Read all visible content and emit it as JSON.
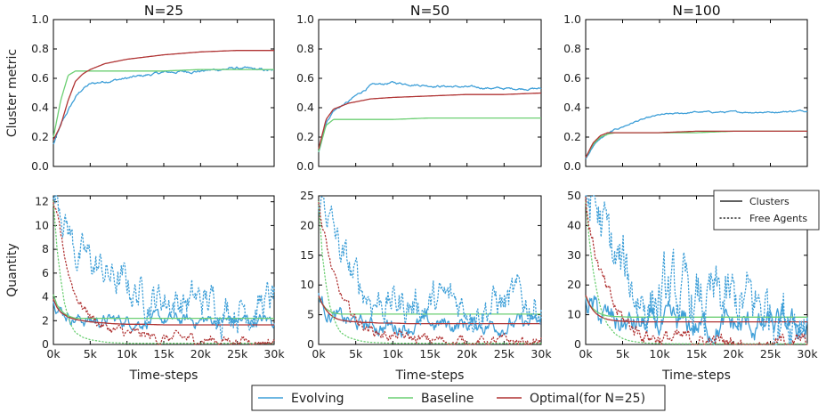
{
  "colors": {
    "evolving": "#3e9fd8",
    "baseline": "#6ccf73",
    "optimal": "#b03434",
    "black": "#000000"
  },
  "legend": {
    "bottom": [
      {
        "key": "evolving",
        "label": "Evolving"
      },
      {
        "key": "baseline",
        "label": "Baseline"
      },
      {
        "key": "optimal",
        "label": "Optimal(for N=25)"
      }
    ],
    "inset": {
      "clusters": "Clusters",
      "free_agents": "Free Agents",
      "placement": "upper-right of N=100 quantity panel"
    }
  },
  "chart_data": [
    {
      "type": "line",
      "title": "N=25",
      "xlabel": "",
      "ylabel": "Cluster metric",
      "xlim": [
        0,
        30000
      ],
      "ylim": [
        0,
        1.0
      ],
      "xticks": [
        0,
        5000,
        10000,
        15000,
        20000,
        25000,
        30000
      ],
      "xtick_labels": [],
      "yticks": [
        0,
        0.2,
        0.4,
        0.6,
        0.8,
        1.0
      ],
      "ytick_labels": [
        "0.0",
        "0.2",
        "0.4",
        "0.6",
        "0.8",
        "1.0"
      ],
      "x": [
        0,
        1000,
        2000,
        3000,
        4000,
        5000,
        7000,
        10000,
        15000,
        20000,
        25000,
        30000
      ],
      "series": [
        {
          "key": "evolving",
          "style": "solid",
          "noise": 0.025,
          "values": [
            0.15,
            0.28,
            0.38,
            0.47,
            0.53,
            0.56,
            0.58,
            0.6,
            0.64,
            0.65,
            0.67,
            0.65
          ]
        },
        {
          "key": "baseline",
          "style": "solid",
          "noise": 0,
          "values": [
            0.2,
            0.45,
            0.62,
            0.65,
            0.65,
            0.65,
            0.65,
            0.65,
            0.65,
            0.66,
            0.66,
            0.66
          ]
        },
        {
          "key": "optimal",
          "style": "solid",
          "noise": 0,
          "values": [
            0.18,
            0.28,
            0.45,
            0.58,
            0.63,
            0.66,
            0.7,
            0.73,
            0.76,
            0.78,
            0.79,
            0.79
          ]
        }
      ]
    },
    {
      "type": "line",
      "title": "N=50",
      "xlabel": "",
      "ylabel": "",
      "xlim": [
        0,
        30000
      ],
      "ylim": [
        0,
        1.0
      ],
      "xticks": [
        0,
        5000,
        10000,
        15000,
        20000,
        25000,
        30000
      ],
      "xtick_labels": [],
      "yticks": [
        0,
        0.2,
        0.4,
        0.6,
        0.8,
        1.0
      ],
      "ytick_labels": [
        "0.0",
        "0.2",
        "0.4",
        "0.6",
        "0.8",
        "1.0"
      ],
      "x": [
        0,
        1000,
        2000,
        3000,
        4000,
        5000,
        7000,
        10000,
        15000,
        20000,
        25000,
        30000
      ],
      "series": [
        {
          "key": "evolving",
          "style": "solid",
          "noise": 0.02,
          "values": [
            0.1,
            0.3,
            0.38,
            0.41,
            0.44,
            0.48,
            0.55,
            0.57,
            0.55,
            0.54,
            0.53,
            0.53
          ]
        },
        {
          "key": "baseline",
          "style": "solid",
          "noise": 0,
          "values": [
            0.1,
            0.28,
            0.32,
            0.32,
            0.32,
            0.32,
            0.32,
            0.32,
            0.33,
            0.33,
            0.33,
            0.33
          ]
        },
        {
          "key": "optimal",
          "style": "solid",
          "noise": 0,
          "values": [
            0.12,
            0.32,
            0.39,
            0.41,
            0.43,
            0.44,
            0.46,
            0.47,
            0.48,
            0.49,
            0.49,
            0.5
          ]
        }
      ]
    },
    {
      "type": "line",
      "title": "N=100",
      "xlabel": "",
      "ylabel": "",
      "xlim": [
        0,
        30000
      ],
      "ylim": [
        0,
        1.0
      ],
      "xticks": [
        0,
        5000,
        10000,
        15000,
        20000,
        25000,
        30000
      ],
      "xtick_labels": [],
      "yticks": [
        0,
        0.2,
        0.4,
        0.6,
        0.8,
        1.0
      ],
      "ytick_labels": [
        "0.0",
        "0.2",
        "0.4",
        "0.6",
        "0.8",
        "1.0"
      ],
      "x": [
        0,
        1000,
        2000,
        3000,
        4000,
        5000,
        7000,
        10000,
        15000,
        20000,
        25000,
        30000
      ],
      "series": [
        {
          "key": "evolving",
          "style": "solid",
          "noise": 0.015,
          "values": [
            0.05,
            0.14,
            0.19,
            0.22,
            0.25,
            0.27,
            0.31,
            0.35,
            0.37,
            0.37,
            0.37,
            0.38
          ]
        },
        {
          "key": "baseline",
          "style": "solid",
          "noise": 0,
          "values": [
            0.06,
            0.15,
            0.2,
            0.22,
            0.23,
            0.23,
            0.23,
            0.23,
            0.23,
            0.24,
            0.24,
            0.24
          ]
        },
        {
          "key": "optimal",
          "style": "solid",
          "noise": 0,
          "values": [
            0.06,
            0.16,
            0.21,
            0.23,
            0.23,
            0.23,
            0.23,
            0.23,
            0.24,
            0.24,
            0.24,
            0.24
          ]
        }
      ]
    },
    {
      "type": "line",
      "title": "",
      "xlabel": "Time-steps",
      "ylabel": "Quantity",
      "xlim": [
        0,
        30000
      ],
      "ylim": [
        0,
        12.5
      ],
      "xticks": [
        0,
        5000,
        10000,
        15000,
        20000,
        25000,
        30000
      ],
      "xtick_labels": [
        "0k",
        "5k",
        "10k",
        "15k",
        "20k",
        "25k",
        "30k"
      ],
      "yticks": [
        0,
        2,
        4,
        6,
        8,
        10,
        12
      ],
      "ytick_labels": [
        "0",
        "2",
        "4",
        "6",
        "8",
        "10",
        "12"
      ],
      "x": [
        0,
        500,
        1000,
        1500,
        2000,
        2500,
        3000,
        4000,
        5000,
        6000,
        7000,
        8000,
        10000,
        12000,
        15000,
        20000,
        25000,
        30000
      ],
      "series": [
        {
          "key": "evolving",
          "style": "solid",
          "noise": 0.12,
          "values": [
            4.0,
            3.4,
            3.0,
            2.7,
            2.5,
            2.3,
            2.2,
            2.1,
            2.0,
            2.0,
            2.0,
            2.0,
            2.0,
            2.0,
            2.0,
            2.0,
            2.0,
            2.0
          ]
        },
        {
          "key": "baseline",
          "style": "solid",
          "noise": 0,
          "values": [
            4.2,
            3.3,
            2.9,
            2.6,
            2.4,
            2.3,
            2.2,
            2.2,
            2.2,
            2.2,
            2.2,
            2.2,
            2.2,
            2.2,
            2.2,
            2.2,
            2.2,
            2.2
          ]
        },
        {
          "key": "optimal",
          "style": "solid",
          "noise": 0,
          "values": [
            3.8,
            3.1,
            2.7,
            2.5,
            2.3,
            2.2,
            2.1,
            2.0,
            1.9,
            1.85,
            1.8,
            1.75,
            1.7,
            1.7,
            1.65,
            1.65,
            1.65,
            1.65
          ]
        },
        {
          "key": "evolving",
          "style": "dotted",
          "noise": 0.35,
          "values": [
            12.5,
            12.4,
            12.2,
            11.0,
            10.0,
            9.0,
            8.0,
            7.2,
            6.8,
            6.5,
            6.0,
            5.5,
            4.8,
            4.3,
            3.9,
            3.5,
            3.3,
            3.5
          ]
        },
        {
          "key": "baseline",
          "style": "dotted",
          "noise": 0,
          "values": [
            12.0,
            8.0,
            5.5,
            3.5,
            2.3,
            1.5,
            1.0,
            0.6,
            0.4,
            0.3,
            0.2,
            0.15,
            0.1,
            0.1,
            0.1,
            0.1,
            0.1,
            0.1
          ]
        },
        {
          "key": "optimal",
          "style": "dotted",
          "noise": 0.1,
          "values": [
            12.0,
            10.5,
            9.0,
            7.5,
            6.2,
            5.2,
            4.3,
            3.2,
            2.5,
            1.9,
            1.5,
            1.2,
            0.9,
            0.7,
            0.5,
            0.4,
            0.35,
            0.3
          ]
        }
      ]
    },
    {
      "type": "line",
      "title": "",
      "xlabel": "Time-steps",
      "ylabel": "",
      "xlim": [
        0,
        30000
      ],
      "ylim": [
        0,
        25
      ],
      "xticks": [
        0,
        5000,
        10000,
        15000,
        20000,
        25000,
        30000
      ],
      "xtick_labels": [
        "0k",
        "5k",
        "10k",
        "15k",
        "20k",
        "25k",
        "30k"
      ],
      "yticks": [
        0,
        5,
        10,
        15,
        20,
        25
      ],
      "ytick_labels": [
        "0",
        "5",
        "10",
        "15",
        "20",
        "25"
      ],
      "x": [
        0,
        500,
        1000,
        1500,
        2000,
        2500,
        3000,
        4000,
        5000,
        6000,
        7000,
        8000,
        10000,
        12000,
        15000,
        20000,
        25000,
        30000
      ],
      "series": [
        {
          "key": "evolving",
          "style": "solid",
          "noise": 0.15,
          "values": [
            8.5,
            7.0,
            6.0,
            5.3,
            4.8,
            4.5,
            4.2,
            3.8,
            3.5,
            3.3,
            3.2,
            3.1,
            3.1,
            3.2,
            3.3,
            3.4,
            3.4,
            3.4
          ]
        },
        {
          "key": "baseline",
          "style": "solid",
          "noise": 0,
          "values": [
            8.0,
            6.8,
            6.0,
            5.6,
            5.3,
            5.2,
            5.1,
            5.1,
            5.1,
            5.1,
            5.1,
            5.1,
            5.1,
            5.1,
            5.1,
            5.1,
            5.1,
            5.1
          ]
        },
        {
          "key": "optimal",
          "style": "solid",
          "noise": 0,
          "values": [
            8.2,
            6.8,
            5.8,
            5.1,
            4.6,
            4.3,
            4.1,
            3.9,
            3.8,
            3.7,
            3.7,
            3.6,
            3.6,
            3.5,
            3.5,
            3.5,
            3.5,
            3.5
          ]
        },
        {
          "key": "evolving",
          "style": "dotted",
          "noise": 0.35,
          "values": [
            25.0,
            24.5,
            23.5,
            21.5,
            19.0,
            17.0,
            15.2,
            12.5,
            10.5,
            9.2,
            8.3,
            7.6,
            7.0,
            6.8,
            6.9,
            7.0,
            7.0,
            7.0
          ]
        },
        {
          "key": "baseline",
          "style": "dotted",
          "noise": 0,
          "values": [
            24.0,
            15.0,
            10.0,
            6.5,
            4.5,
            3.0,
            2.0,
            1.2,
            0.8,
            0.5,
            0.35,
            0.3,
            0.2,
            0.2,
            0.2,
            0.2,
            0.2,
            0.2
          ]
        },
        {
          "key": "optimal",
          "style": "dotted",
          "noise": 0.1,
          "values": [
            24.0,
            20.0,
            17.0,
            14.0,
            11.5,
            9.5,
            8.0,
            5.8,
            4.3,
            3.3,
            2.6,
            2.0,
            1.4,
            1.0,
            0.7,
            0.5,
            0.4,
            0.4
          ]
        }
      ]
    },
    {
      "type": "line",
      "title": "",
      "xlabel": "Time-steps",
      "ylabel": "",
      "xlim": [
        0,
        30000
      ],
      "ylim": [
        0,
        50
      ],
      "xticks": [
        0,
        5000,
        10000,
        15000,
        20000,
        25000,
        30000
      ],
      "xtick_labels": [
        "0k",
        "5k",
        "10k",
        "15k",
        "20k",
        "25k",
        "30k"
      ],
      "yticks": [
        0,
        10,
        20,
        30,
        40,
        50
      ],
      "ytick_labels": [
        "0",
        "10",
        "20",
        "30",
        "40",
        "50"
      ],
      "x": [
        0,
        500,
        1000,
        1500,
        2000,
        2500,
        3000,
        4000,
        5000,
        6000,
        7000,
        8000,
        10000,
        12000,
        15000,
        20000,
        25000,
        30000
      ],
      "series": [
        {
          "key": "evolving",
          "style": "solid",
          "noise": 0.25,
          "values": [
            17.0,
            14.0,
            12.0,
            10.5,
            9.5,
            8.8,
            8.2,
            7.5,
            7.0,
            6.6,
            6.3,
            6.1,
            6.0,
            6.0,
            6.0,
            6.0,
            6.0,
            6.0
          ]
        },
        {
          "key": "baseline",
          "style": "solid",
          "noise": 0,
          "values": [
            16.0,
            13.5,
            12.0,
            11.0,
            10.3,
            9.9,
            9.6,
            9.4,
            9.3,
            9.2,
            9.2,
            9.2,
            9.2,
            9.2,
            9.2,
            9.2,
            9.2,
            9.2
          ]
        },
        {
          "key": "optimal",
          "style": "solid",
          "noise": 0,
          "values": [
            16.5,
            13.5,
            11.5,
            10.2,
            9.4,
            8.8,
            8.4,
            8.0,
            7.8,
            7.7,
            7.6,
            7.6,
            7.6,
            7.6,
            7.6,
            7.6,
            7.6,
            7.6
          ]
        },
        {
          "key": "evolving",
          "style": "dotted",
          "noise": 0.6,
          "values": [
            50.0,
            49.5,
            48.0,
            45.0,
            41.0,
            37.0,
            33.0,
            27.0,
            23.0,
            20.0,
            18.0,
            16.5,
            15.0,
            14.0,
            12.5,
            12.0,
            12.5,
            13.0
          ]
        },
        {
          "key": "baseline",
          "style": "dotted",
          "noise": 0,
          "values": [
            48.0,
            35.0,
            25.0,
            18.0,
            12.5,
            9.0,
            6.5,
            3.5,
            2.0,
            1.2,
            0.8,
            0.5,
            0.3,
            0.2,
            0.2,
            0.2,
            0.2,
            0.2
          ]
        },
        {
          "key": "optimal",
          "style": "dotted",
          "noise": 0.15,
          "values": [
            48.0,
            40.0,
            34.0,
            29.0,
            24.0,
            20.0,
            16.5,
            11.5,
            8.5,
            6.3,
            4.8,
            3.7,
            2.4,
            1.6,
            1.0,
            0.7,
            0.5,
            0.5
          ]
        }
      ]
    }
  ]
}
